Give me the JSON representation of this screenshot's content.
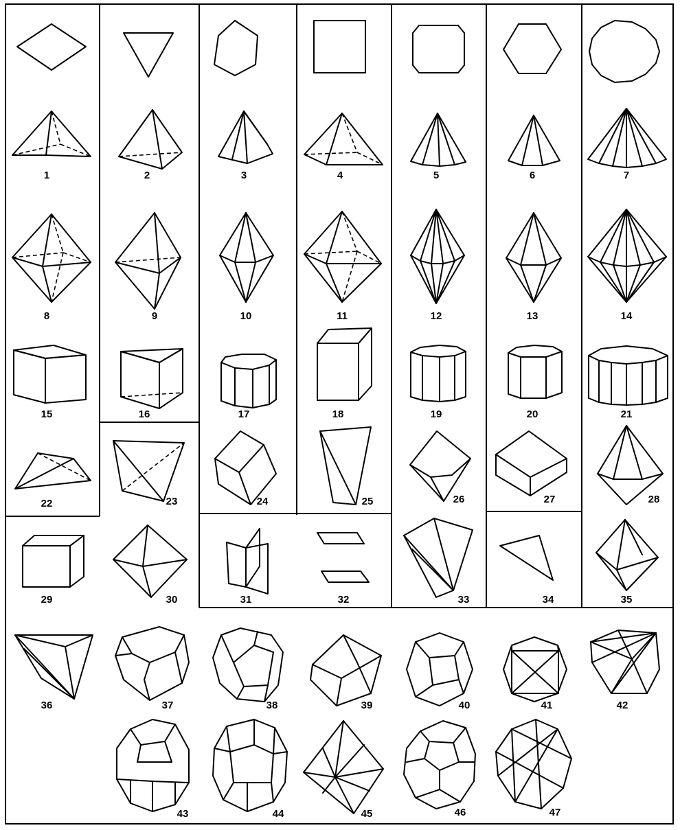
{
  "figure": {
    "title": "",
    "labels": [
      "1",
      "2",
      "3",
      "4",
      "5",
      "6",
      "7",
      "8",
      "9",
      "10",
      "11",
      "12",
      "13",
      "14",
      "15",
      "16",
      "17",
      "18",
      "19",
      "20",
      "21",
      "22",
      "23",
      "24",
      "25",
      "26",
      "27",
      "28",
      "29",
      "30",
      "31",
      "32",
      "33",
      "34",
      "35",
      "36",
      "37",
      "38",
      "39",
      "40",
      "41",
      "42",
      "43",
      "44",
      "45",
      "46",
      "47"
    ]
  }
}
